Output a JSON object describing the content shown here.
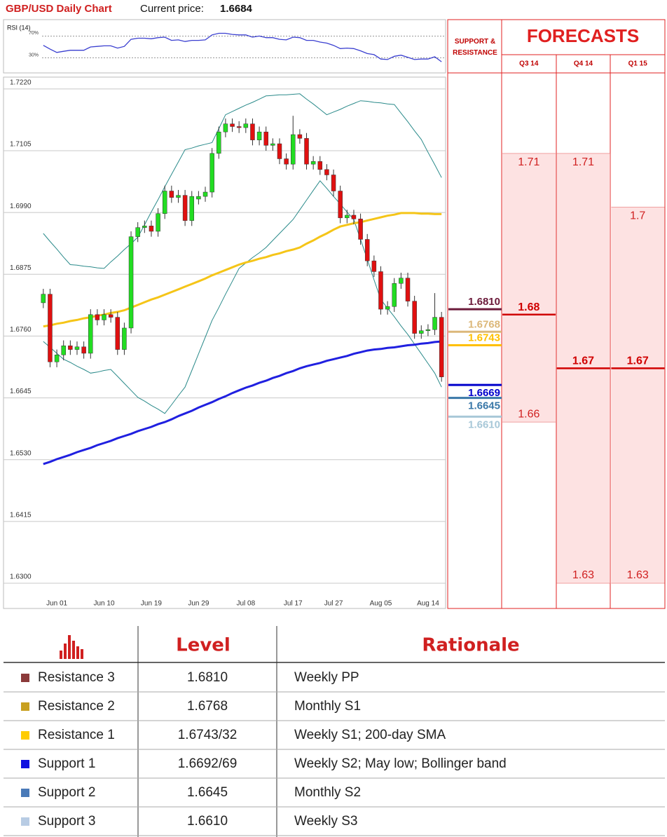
{
  "header": {
    "title": "GBP/USD Daily Chart",
    "price_label": "Current price:",
    "price": 1.6684
  },
  "chart_data": [
    {
      "type": "line",
      "title": "RSI (14)",
      "color": "#3a3fd0",
      "values": [
        53,
        46,
        40,
        42,
        44,
        44,
        44,
        50,
        51,
        52,
        52,
        48,
        51,
        64,
        66,
        66,
        65,
        67,
        68,
        62,
        63,
        60,
        62,
        62,
        63,
        72,
        75,
        75,
        73,
        72,
        72,
        68,
        70,
        67,
        67,
        64,
        63,
        68,
        67,
        62,
        62,
        59,
        57,
        53,
        47,
        48,
        47,
        43,
        38,
        36,
        28,
        27,
        33,
        35,
        31,
        27,
        28,
        28,
        32,
        23
      ],
      "ylim": [
        0,
        100
      ],
      "yticks": [
        {
          "value": 70,
          "label": "70%"
        },
        {
          "value": 30,
          "label": "30%"
        }
      ]
    },
    {
      "type": "candlestick",
      "up_color": "#22dd22",
      "down_color": "#e01010",
      "grid": true,
      "categories": [
        null,
        null,
        "Jun 01",
        null,
        null,
        null,
        null,
        null,
        null,
        "Jun 10",
        null,
        null,
        null,
        null,
        null,
        null,
        "Jun 19",
        null,
        null,
        null,
        null,
        null,
        null,
        "Jun 29",
        null,
        null,
        null,
        null,
        null,
        null,
        "Jul 08",
        null,
        null,
        null,
        null,
        null,
        null,
        "Jul 17",
        null,
        null,
        null,
        null,
        null,
        "Jul 27",
        null,
        null,
        null,
        null,
        null,
        null,
        "Aug 05",
        null,
        null,
        null,
        null,
        null,
        null,
        "Aug 14",
        null,
        null
      ],
      "open": [
        1.6822,
        1.6838,
        1.6712,
        1.6725,
        1.6742,
        1.6735,
        1.674,
        1.6728,
        1.68,
        1.679,
        1.68,
        1.6795,
        1.6735,
        1.6775,
        1.6945,
        1.6962,
        1.6965,
        1.6955,
        1.6988,
        1.703,
        1.7018,
        1.7022,
        1.6975,
        1.7015,
        1.702,
        1.7028,
        1.71,
        1.714,
        1.7155,
        1.715,
        1.7148,
        1.7155,
        1.7125,
        1.714,
        1.7115,
        1.7118,
        1.709,
        1.708,
        1.7135,
        1.7128,
        1.708,
        1.7085,
        1.707,
        1.706,
        1.703,
        1.698,
        1.6985,
        1.6978,
        1.694,
        1.69,
        1.688,
        1.681,
        1.6815,
        1.6858,
        1.6868,
        1.6825,
        1.6765,
        1.677,
        1.6772,
        1.6795
      ],
      "high": [
        1.6848,
        1.6848,
        1.6735,
        1.6752,
        1.6752,
        1.675,
        1.675,
        1.681,
        1.681,
        1.681,
        1.681,
        1.6805,
        1.6785,
        1.6955,
        1.6972,
        1.6975,
        1.6975,
        1.6998,
        1.704,
        1.704,
        1.7032,
        1.7032,
        1.703,
        1.703,
        1.7038,
        1.711,
        1.715,
        1.7165,
        1.7165,
        1.716,
        1.7165,
        1.7165,
        1.715,
        1.715,
        1.7128,
        1.7128,
        1.71,
        1.717,
        1.7145,
        1.7138,
        1.7095,
        1.7095,
        1.708,
        1.707,
        1.704,
        1.6995,
        1.6995,
        1.6988,
        1.695,
        1.691,
        1.689,
        1.6825,
        1.6868,
        1.6878,
        1.6878,
        1.6835,
        1.678,
        1.6782,
        1.684,
        1.6805
      ],
      "low": [
        1.6812,
        1.6702,
        1.6702,
        1.6715,
        1.6725,
        1.6725,
        1.6718,
        1.6718,
        1.678,
        1.678,
        1.6785,
        1.6725,
        1.6725,
        1.6765,
        1.6935,
        1.6952,
        1.6945,
        1.6945,
        1.6978,
        1.7008,
        1.7008,
        1.6965,
        1.6965,
        1.7005,
        1.701,
        1.7018,
        1.709,
        1.713,
        1.714,
        1.7138,
        1.7138,
        1.7115,
        1.7115,
        1.7105,
        1.7105,
        1.708,
        1.707,
        1.707,
        1.7118,
        1.707,
        1.707,
        1.706,
        1.705,
        1.702,
        1.697,
        1.697,
        1.6968,
        1.693,
        1.689,
        1.687,
        1.68,
        1.68,
        1.6805,
        1.6848,
        1.6815,
        1.6755,
        1.6755,
        1.676,
        1.6762,
        1.6675
      ],
      "close": [
        1.6838,
        1.6712,
        1.6725,
        1.6742,
        1.6735,
        1.674,
        1.6728,
        1.68,
        1.679,
        1.68,
        1.6795,
        1.6735,
        1.6775,
        1.6945,
        1.6962,
        1.6965,
        1.6955,
        1.6988,
        1.703,
        1.7018,
        1.7022,
        1.6975,
        1.702,
        1.702,
        1.7028,
        1.71,
        1.714,
        1.7155,
        1.715,
        1.7148,
        1.7155,
        1.7125,
        1.714,
        1.7115,
        1.7118,
        1.709,
        1.708,
        1.7135,
        1.7128,
        1.708,
        1.7085,
        1.707,
        1.706,
        1.703,
        1.698,
        1.6985,
        1.6978,
        1.694,
        1.69,
        1.688,
        1.681,
        1.6815,
        1.6858,
        1.6868,
        1.6825,
        1.6765,
        1.677,
        1.6772,
        1.6795,
        1.6684
      ],
      "series": [
        {
          "color": "#2a8a8a",
          "values": [
            1.675,
            1.6739,
            1.6728,
            1.6717,
            1.6711,
            1.6704,
            1.6698,
            1.6691,
            1.6693,
            1.6696,
            1.6698,
            1.6685,
            1.6672,
            1.6659,
            1.6646,
            1.6639,
            1.6631,
            1.6624,
            1.6616,
            1.6632,
            1.6649,
            1.6665,
            1.6696,
            1.6727,
            1.6758,
            1.6789,
            1.6813,
            1.6838,
            1.6862,
            1.6886,
            1.6896,
            1.6906,
            1.6915,
            1.6925,
            1.6938,
            1.6951,
            1.6964,
            1.6977,
            1.6995,
            1.7013,
            1.7031,
            1.7049,
            1.7035,
            1.702,
            1.7006,
            1.6991,
            1.6977,
            1.694,
            1.6903,
            1.6865,
            1.6828,
            1.6812,
            1.6796,
            1.6779,
            1.6763,
            1.6745,
            1.6727,
            1.6709,
            1.6691,
            1.6665
          ]
        },
        {
          "color": "#2a8a8a",
          "values": [
            1.6951,
            1.6936,
            1.6922,
            1.6907,
            1.6893,
            1.6892,
            1.689,
            1.6889,
            1.6887,
            1.6886,
            1.6898,
            1.6909,
            1.6921,
            1.6932,
            1.6944,
            1.6967,
            1.6991,
            1.7014,
            1.7038,
            1.7061,
            1.7084,
            1.7107,
            1.711,
            1.7114,
            1.7117,
            1.712,
            1.7146,
            1.7172,
            1.7178,
            1.7184,
            1.719,
            1.7195,
            1.7201,
            1.7207,
            1.7208,
            1.7209,
            1.7209,
            1.721,
            1.7211,
            1.7201,
            1.7192,
            1.7182,
            1.7172,
            1.7177,
            1.7182,
            1.7188,
            1.7193,
            1.7198,
            1.7197,
            1.7195,
            1.7194,
            1.7192,
            1.7191,
            1.7175,
            1.7159,
            1.7142,
            1.7126,
            1.7102,
            1.7079,
            1.7055
          ]
        },
        {
          "color": "#f5c518",
          "values": [
            1.6778,
            1.678,
            1.6783,
            1.6785,
            1.6788,
            1.679,
            1.6793,
            1.6795,
            1.6798,
            1.68,
            1.6803,
            1.6805,
            1.6808,
            1.6813,
            1.6818,
            1.6823,
            1.6828,
            1.6832,
            1.6837,
            1.6842,
            1.6847,
            1.6852,
            1.6857,
            1.6862,
            1.6867,
            1.6873,
            1.6878,
            1.6883,
            1.6888,
            1.6893,
            1.6897,
            1.69,
            1.6904,
            1.6907,
            1.6911,
            1.6914,
            1.6918,
            1.6921,
            1.6925,
            1.6932,
            1.6938,
            1.6945,
            1.6951,
            1.6958,
            1.6964,
            1.6967,
            1.697,
            1.6972,
            1.6975,
            1.6978,
            1.6981,
            1.6984,
            1.6986,
            1.6989,
            1.6989,
            1.6989,
            1.6988,
            1.6988,
            1.6987,
            1.6987
          ]
        },
        {
          "color": "#2020e0",
          "values": [
            1.6522,
            1.6526,
            1.6531,
            1.6535,
            1.6539,
            1.6544,
            1.6548,
            1.6552,
            1.6557,
            1.6561,
            1.6565,
            1.657,
            1.6574,
            1.6578,
            1.6583,
            1.6587,
            1.6591,
            1.6596,
            1.66,
            1.6605,
            1.6611,
            1.6616,
            1.6621,
            1.6627,
            1.6632,
            1.6637,
            1.6643,
            1.6648,
            1.6654,
            1.6659,
            1.6664,
            1.6668,
            1.6673,
            1.6677,
            1.6682,
            1.6686,
            1.6691,
            1.6695,
            1.67,
            1.6704,
            1.6707,
            1.671,
            1.6714,
            1.6717,
            1.672,
            1.6723,
            1.6727,
            1.673,
            1.6733,
            1.6735,
            1.6736,
            1.6738,
            1.6739,
            1.6741,
            1.6743,
            1.6744,
            1.6746,
            1.6747,
            1.6749,
            1.675
          ]
        }
      ],
      "ylim": [
        1.627,
        1.7242
      ],
      "yticks": [
        {
          "value": 1.722,
          "label": "1.7220"
        },
        1.7105,
        {
          "value": 1.699,
          "label": "1.6990"
        },
        1.6875,
        {
          "value": 1.676,
          "label": "1.6760"
        },
        1.6645,
        {
          "value": 1.653,
          "label": "1.6530"
        },
        1.6415,
        {
          "value": 1.63,
          "label": "1.6300"
        }
      ]
    }
  ],
  "levels": {
    "title": "SUPPORT & RESISTANCE",
    "lines": [
      {
        "value": 1.681,
        "label": "1.6810",
        "color": "#6b1a3a"
      },
      {
        "value": 1.6768,
        "label": "1.6768",
        "color": "#dcb87a"
      },
      {
        "value": 1.6743,
        "label": "1.6743",
        "color": "#ffc000"
      },
      {
        "value": 1.6669,
        "label": "1.6669",
        "color": "#0000cc"
      },
      {
        "value": 1.6645,
        "label": "1.6645",
        "color": "#3a78a8"
      },
      {
        "value": 1.661,
        "label": "1.6610",
        "color": "#a8c8d8"
      }
    ]
  },
  "forecasts": {
    "title": "FORECASTS",
    "columns": [
      {
        "name": "Q3 14",
        "high": 1.71,
        "low": 1.66,
        "mid": 1.68
      },
      {
        "name": "Q4 14",
        "high": 1.71,
        "low": 1.63,
        "mid": 1.67
      },
      {
        "name": "Q1 15",
        "high": 1.7,
        "low": 1.63,
        "mid": 1.67
      }
    ]
  },
  "table": {
    "headers": [
      "Level",
      "Rationale"
    ],
    "rows": [
      {
        "color": "#8b3a3a",
        "name": "Resistance 3",
        "level": "1.6810",
        "rationale": "Weekly PP"
      },
      {
        "color": "#c8a020",
        "name": "Resistance 2",
        "level": "1.6768",
        "rationale": "Monthly S1"
      },
      {
        "color": "#ffcc00",
        "name": "Resistance 1",
        "level": "1.6743/32",
        "rationale": "Weekly S1; 200-day SMA"
      },
      {
        "color": "#1010e0",
        "name": "Support 1",
        "level": "1.6692/69",
        "rationale": "Weekly S2; May low; Bollinger band"
      },
      {
        "color": "#4a7ab8",
        "name": "Support 2",
        "level": "1.6645",
        "rationale": "Monthly S2"
      },
      {
        "color": "#b8cce4",
        "name": "Support 3",
        "level": "1.6610",
        "rationale": "Weekly S3"
      }
    ]
  }
}
